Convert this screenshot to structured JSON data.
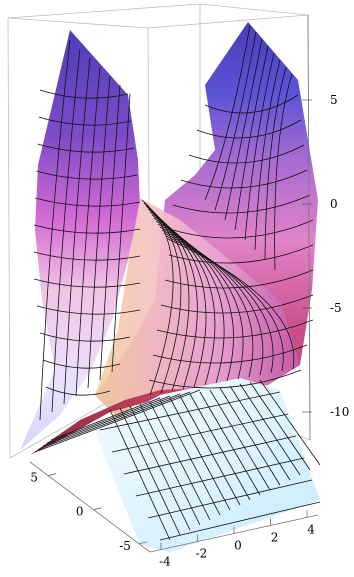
{
  "chart_data": {
    "type": "surface3d",
    "title": "",
    "z_ticks": [
      {
        "value": 5,
        "label": "5"
      },
      {
        "value": 0,
        "label": "0"
      },
      {
        "value": -5,
        "label": "-5"
      },
      {
        "value": -10,
        "label": "-10"
      }
    ],
    "x_ticks": [
      {
        "value": -4,
        "label": "-4"
      },
      {
        "value": -2,
        "label": "-2"
      },
      {
        "value": 0,
        "label": "0"
      },
      {
        "value": 2,
        "label": "2"
      },
      {
        "value": 4,
        "label": "4"
      }
    ],
    "y_ticks": [
      {
        "value": 5,
        "label": "5"
      },
      {
        "value": 0,
        "label": "0"
      },
      {
        "value": -5,
        "label": "-5"
      }
    ],
    "zlim": [
      -13,
      8
    ],
    "grid": false,
    "box": true,
    "colors": {
      "top": "#5b47c8",
      "upper_mid": "#c96ad0",
      "middle": "#f3b3c8",
      "warm": "#f7d9a0",
      "red_edge": "#c23a55",
      "sheet": "#cfefff",
      "box": "#bdbdbd"
    }
  }
}
